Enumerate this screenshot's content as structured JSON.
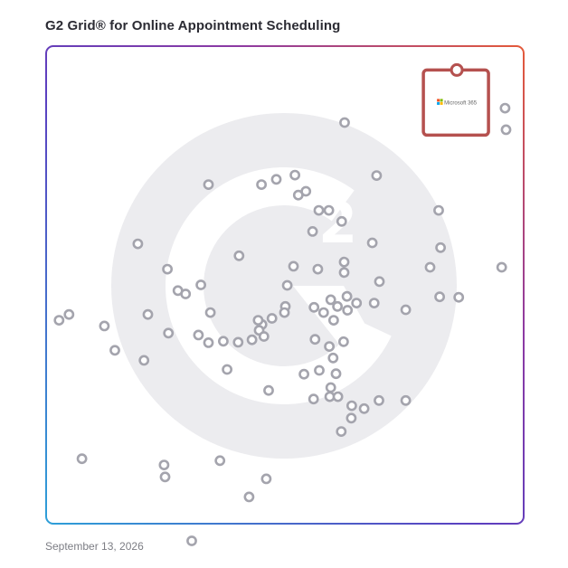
{
  "title": "G2 Grid® for Online Appointment Scheduling",
  "date": "September 13, 2026",
  "colors": {
    "dot_stroke": "#a4a4ad",
    "watermark": "#ececef",
    "highlight": "#b5514f",
    "border_gradient": [
      "#2e9fd8",
      "#5b3fc0",
      "#8d3aa3",
      "#e45a3a"
    ],
    "axis_lines": [
      "#6c4fc8",
      "#4e8ad8",
      "#b8435a",
      "#a347a8"
    ]
  },
  "highlight_product": {
    "label": "Microsoft 365",
    "icon": "microsoft-logo-icon"
  },
  "chart_data": {
    "type": "scatter",
    "title": "G2 Grid® for Online Appointment Scheduling",
    "xlabel": "",
    "ylabel": "",
    "xlim": [
      0,
      100
    ],
    "ylim": [
      0,
      100
    ],
    "quadrant_dividers": {
      "x": 50,
      "y": 50
    },
    "highlight": {
      "x": 86,
      "y": 95
    },
    "points": [
      [
        62.5,
        84
      ],
      [
        96.3,
        82.5
      ],
      [
        96.1,
        87
      ],
      [
        34,
        71
      ],
      [
        45.1,
        71
      ],
      [
        48.2,
        72.1
      ],
      [
        52.1,
        73
      ],
      [
        52.8,
        68.8
      ],
      [
        54.4,
        69.6
      ],
      [
        57.1,
        65.6
      ],
      [
        59.2,
        65.6
      ],
      [
        69.2,
        72.9
      ],
      [
        62.4,
        52.6
      ],
      [
        61.9,
        63.3
      ],
      [
        55.8,
        61.2
      ],
      [
        68.3,
        58.8
      ],
      [
        82.2,
        65.6
      ],
      [
        82.6,
        57.8
      ],
      [
        80.4,
        53.7
      ],
      [
        82.4,
        47.5
      ],
      [
        95.4,
        53.7
      ],
      [
        86.4,
        47.4
      ],
      [
        75.3,
        44.8
      ],
      [
        51.8,
        53.9
      ],
      [
        56.9,
        53.3
      ],
      [
        62.4,
        54.8
      ],
      [
        50.5,
        49.9
      ],
      [
        19.2,
        58.6
      ],
      [
        25.4,
        53.3
      ],
      [
        27.6,
        48.8
      ],
      [
        32.4,
        50
      ],
      [
        40.4,
        56.1
      ],
      [
        63,
        47.6
      ],
      [
        59.6,
        46.9
      ],
      [
        56.1,
        45.3
      ],
      [
        61,
        45.5
      ],
      [
        65,
        46.2
      ],
      [
        63.1,
        44.7
      ],
      [
        58.1,
        44.2
      ],
      [
        60.2,
        42.6
      ],
      [
        62.3,
        38.1
      ],
      [
        59.3,
        37.1
      ],
      [
        56.3,
        38.6
      ],
      [
        60.1,
        34.7
      ],
      [
        57.2,
        32.1
      ],
      [
        54,
        31.3
      ],
      [
        50.1,
        45.5
      ],
      [
        47.3,
        43
      ],
      [
        45.2,
        41.7
      ],
      [
        44.4,
        42.6
      ],
      [
        44.6,
        40.5
      ],
      [
        45.6,
        39.2
      ],
      [
        43.1,
        38.5
      ],
      [
        49.9,
        44.2
      ],
      [
        40.2,
        38
      ],
      [
        37.1,
        38.2
      ],
      [
        34,
        37.9
      ],
      [
        34.4,
        44.2
      ],
      [
        31.9,
        39.5
      ],
      [
        29.2,
        48.1
      ],
      [
        2.7,
        42.6
      ],
      [
        4.8,
        43.8
      ],
      [
        12.2,
        41.4
      ],
      [
        21.3,
        43.8
      ],
      [
        25.6,
        39.9
      ],
      [
        14.4,
        36.3
      ],
      [
        20.5,
        34.2
      ],
      [
        37.9,
        32.3
      ],
      [
        46.6,
        27.9
      ],
      [
        69.8,
        50.7
      ],
      [
        68.7,
        46.2
      ],
      [
        60.7,
        31.4
      ],
      [
        59.6,
        28.5
      ],
      [
        59.4,
        26.6
      ],
      [
        56,
        26.1
      ],
      [
        63.9,
        22.1
      ],
      [
        61.8,
        19.3
      ],
      [
        66.6,
        24.1
      ],
      [
        64,
        24.7
      ],
      [
        69.7,
        25.8
      ],
      [
        75.3,
        25.8
      ],
      [
        61.1,
        26.6
      ],
      [
        7.5,
        13.6
      ],
      [
        24.7,
        12.3
      ],
      [
        24.9,
        9.8
      ],
      [
        36.4,
        13.2
      ],
      [
        46.1,
        9.4
      ],
      [
        42.5,
        5.6
      ],
      [
        30.5,
        -3.6
      ]
    ]
  }
}
